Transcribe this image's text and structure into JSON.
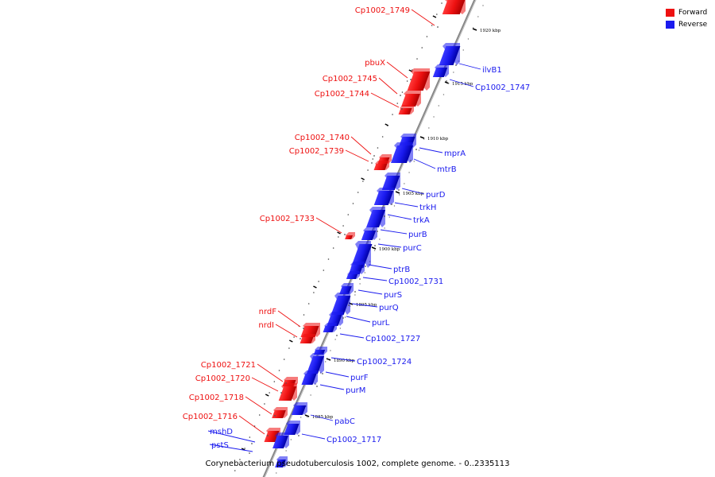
{
  "legend": {
    "forward_label": "Forward",
    "reverse_label": "Reverse",
    "forward_color": "#ee1111",
    "reverse_color": "#1a1aee"
  },
  "caption": "Corynebacterium pseudotuberculosis 1002, complete genome. - 0..2335113",
  "scale_labels": [
    "1920 kbp",
    "1915 kbp",
    "1910 kbp",
    "1905 kbp",
    "1900 kbp",
    "1895 kbp",
    "1890 kbp",
    "1885 kbp"
  ],
  "forward_genes": [
    "Cp1002_1749",
    "pbuX",
    "Cp1002_1745",
    "Cp1002_1744",
    "Cp1002_1740",
    "Cp1002_1739",
    "Cp1002_1733",
    "nrdF",
    "nrdI",
    "Cp1002_1721",
    "Cp1002_1720",
    "Cp1002_1718",
    "Cp1002_1716"
  ],
  "reverse_genes": [
    "ilvB1",
    "Cp1002_1747",
    "mprA",
    "mtrB",
    "purD",
    "trkH",
    "trkA",
    "purB",
    "purC",
    "ptrB",
    "Cp1002_1731",
    "purS",
    "purQ",
    "purL",
    "Cp1002_1727",
    "Cp1002_1724",
    "purF",
    "purM",
    "pabC",
    "Cp1002_1717",
    "mshD",
    "pstS"
  ]
}
